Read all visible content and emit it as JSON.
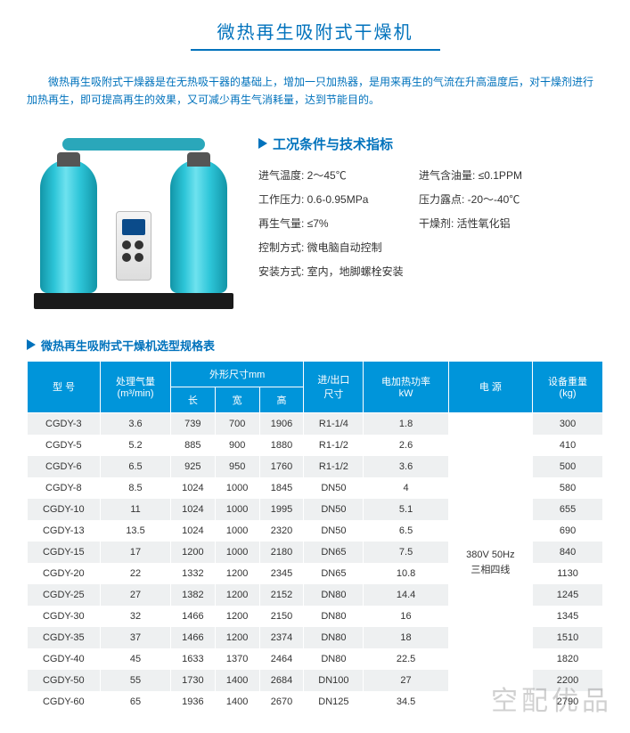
{
  "title": "微热再生吸附式干燥机",
  "intro": "微热再生吸附式干燥器是在无热吸干器的基础上，增加一只加热器，是用来再生的气流在升高温度后，对干燥剂进行加热再生，即可提高再生的效果，又可减少再生气消耗量，达到节能目的。",
  "spec_section_title": "工况条件与技术指标",
  "specs": {
    "r1c1": "进气温度: 2～45℃",
    "r1c2": "进气含油量: ≤0.1PPM",
    "r2c1": "工作压力: 0.6-0.95MPa",
    "r2c2": "压力露点: -20～-40℃",
    "r3c1": "再生气量: ≤7%",
    "r3c2": "干燥剂: 活性氧化铝",
    "r4": "控制方式: 微电脑自动控制",
    "r5": "安装方式: 室内，地脚螺栓安装"
  },
  "table_title": "微热再生吸附式干燥机选型规格表",
  "table": {
    "headers": {
      "model": "型 号",
      "air": "处理气量",
      "air_unit": "(m³/min)",
      "dim": "外形尺寸mm",
      "len": "长",
      "wid": "宽",
      "hei": "高",
      "port": "进/出口",
      "port_sub": "尺寸",
      "heat": "电加热功率",
      "heat_unit": "kW",
      "power": "电 源",
      "weight": "设备重量",
      "weight_unit": "(kg)"
    },
    "power_label": "380V 50Hz\n三相四线",
    "rows": [
      {
        "m": "CGDY-3",
        "a": "3.6",
        "l": "739",
        "w": "700",
        "h": "1906",
        "p": "R1-1/4",
        "k": "1.8",
        "wt": "300"
      },
      {
        "m": "CGDY-5",
        "a": "5.2",
        "l": "885",
        "w": "900",
        "h": "1880",
        "p": "R1-1/2",
        "k": "2.6",
        "wt": "410"
      },
      {
        "m": "CGDY-6",
        "a": "6.5",
        "l": "925",
        "w": "950",
        "h": "1760",
        "p": "R1-1/2",
        "k": "3.6",
        "wt": "500"
      },
      {
        "m": "CGDY-8",
        "a": "8.5",
        "l": "1024",
        "w": "1000",
        "h": "1845",
        "p": "DN50",
        "k": "4",
        "wt": "580"
      },
      {
        "m": "CGDY-10",
        "a": "11",
        "l": "1024",
        "w": "1000",
        "h": "1995",
        "p": "DN50",
        "k": "5.1",
        "wt": "655"
      },
      {
        "m": "CGDY-13",
        "a": "13.5",
        "l": "1024",
        "w": "1000",
        "h": "2320",
        "p": "DN50",
        "k": "6.5",
        "wt": "690"
      },
      {
        "m": "CGDY-15",
        "a": "17",
        "l": "1200",
        "w": "1000",
        "h": "2180",
        "p": "DN65",
        "k": "7.5",
        "wt": "840"
      },
      {
        "m": "CGDY-20",
        "a": "22",
        "l": "1332",
        "w": "1200",
        "h": "2345",
        "p": "DN65",
        "k": "10.8",
        "wt": "1130"
      },
      {
        "m": "CGDY-25",
        "a": "27",
        "l": "1382",
        "w": "1200",
        "h": "2152",
        "p": "DN80",
        "k": "14.4",
        "wt": "1245"
      },
      {
        "m": "CGDY-30",
        "a": "32",
        "l": "1466",
        "w": "1200",
        "h": "2150",
        "p": "DN80",
        "k": "16",
        "wt": "1345"
      },
      {
        "m": "CGDY-35",
        "a": "37",
        "l": "1466",
        "w": "1200",
        "h": "2374",
        "p": "DN80",
        "k": "18",
        "wt": "1510"
      },
      {
        "m": "CGDY-40",
        "a": "45",
        "l": "1633",
        "w": "1370",
        "h": "2464",
        "p": "DN80",
        "k": "22.5",
        "wt": "1820"
      },
      {
        "m": "CGDY-50",
        "a": "55",
        "l": "1730",
        "w": "1400",
        "h": "2684",
        "p": "DN100",
        "k": "27",
        "wt": "2200"
      },
      {
        "m": "CGDY-60",
        "a": "65",
        "l": "1936",
        "w": "1400",
        "h": "2670",
        "p": "DN125",
        "k": "34.5",
        "wt": "2790"
      }
    ]
  },
  "watermark": "空配优品",
  "colors": {
    "brand_blue": "#0072bc",
    "header_blue": "#0095da",
    "row_odd": "#eef0f1",
    "tank_teal": "#2dc5d8"
  }
}
